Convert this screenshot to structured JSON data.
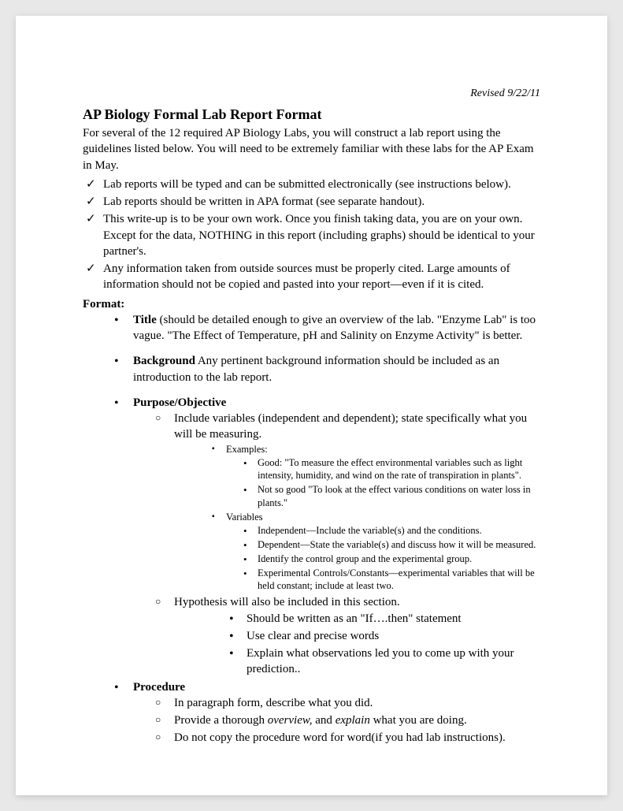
{
  "revised": "Revised 9/22/11",
  "title": "AP Biology Formal Lab Report Format",
  "intro": "For several of the 12 required AP Biology Labs, you will construct a lab report using the guidelines listed below. You will need to be extremely familiar with these labs for the AP Exam in May.",
  "checks": [
    "Lab reports will be typed and can be submitted electronically (see instructions below).",
    "Lab reports should be written in APA format (see separate handout).",
    "This write-up is to be your own work. Once you finish taking data, you are on your own. Except for the data, NOTHING in this report (including graphs) should be identical to your partner's.",
    "Any information taken from outside sources must be properly cited. Large amounts of information should not be copied and pasted into your report—even if it is cited."
  ],
  "format_label": "Format:",
  "sections": {
    "title": {
      "name": "Title",
      "text": " (should be detailed enough to give an overview of the lab. \"Enzyme Lab\" is too vague. \"The Effect of Temperature, pH and Salinity on Enzyme Activity\" is better."
    },
    "background": {
      "name": "Background",
      "text": "  Any pertinent background information should be included  as an introduction to the lab report."
    },
    "purpose": {
      "name": "Purpose/Objective",
      "sub1": "Include variables (independent and dependent); state specifically what you will be measuring.",
      "examples_label": "Examples:",
      "ex_good": "Good: \"To measure the effect environmental variables such as light intensity, humidity, and wind on the rate of transpiration in plants\".",
      "ex_bad": "Not so good \"To look at the effect various conditions on water loss in plants.\"",
      "vars_label": "Variables",
      "var_items": [
        "Independent—Include the variable(s) and the conditions.",
        "Dependent—State the variable(s) and discuss how it will be measured.",
        "Identify the control group and the experimental group.",
        "Experimental Controls/Constants—experimental variables that will be held constant; include at least two."
      ],
      "hyp": "Hypothesis will also be included in this section.",
      "hyp_items": [
        "Should be written as an \"If….then\" statement",
        "Use clear and precise words",
        "Explain what observations led you to come up with your prediction.."
      ]
    },
    "procedure": {
      "name": "Procedure",
      "items": [
        "In paragraph form, describe what you did.",
        "Do not copy the procedure word for word(if you had lab instructions)."
      ],
      "overview_pre": "Provide a thorough ",
      "overview_i1": "overview,",
      "overview_mid": " and ",
      "overview_i2": "explain",
      "overview_post": " what you are doing."
    }
  }
}
